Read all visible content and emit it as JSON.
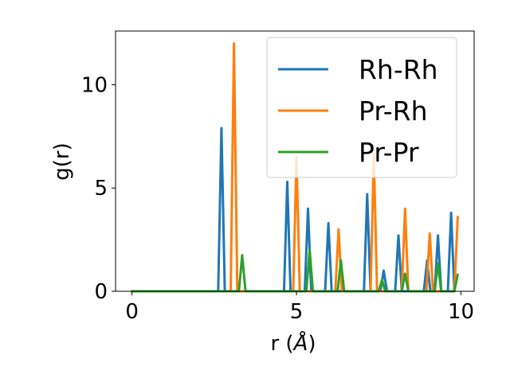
{
  "chart_data": {
    "type": "line",
    "title": "",
    "xlabel_prefix": "r (",
    "xlabel_unit": "Å",
    "xlabel_suffix": ")",
    "ylabel": "g(r)",
    "xlim": [
      -0.5,
      10.4
    ],
    "ylim": [
      0,
      12.6
    ],
    "xticks": [
      0,
      5,
      10
    ],
    "yticks": [
      0,
      5,
      10
    ],
    "legend_position": "top-right",
    "grid": false,
    "series": [
      {
        "name": "Rh-Rh",
        "color": "#1f77b4",
        "x": [
          0,
          2.62,
          2.72,
          2.82,
          4.62,
          4.72,
          4.82,
          5.25,
          5.35,
          5.45,
          5.87,
          5.97,
          6.07,
          7.05,
          7.15,
          7.25,
          7.55,
          7.65,
          7.75,
          8.0,
          8.1,
          8.2,
          8.87,
          8.97,
          9.07,
          9.2,
          9.3,
          9.4,
          9.6,
          9.7,
          9.8
        ],
        "y": [
          0,
          0,
          7.9,
          0,
          0,
          5.3,
          0,
          0,
          4.0,
          0,
          0,
          3.3,
          0,
          0,
          4.7,
          0,
          0,
          1.0,
          0,
          0,
          2.7,
          0,
          0,
          1.5,
          0,
          0,
          2.7,
          0,
          0,
          3.8,
          0
        ]
      },
      {
        "name": "Pr-Rh",
        "color": "#ff7f0e",
        "x": [
          0,
          3.0,
          3.1,
          3.2,
          4.9,
          5.0,
          5.1,
          6.18,
          6.28,
          6.38,
          7.25,
          7.35,
          7.45,
          8.2,
          8.3,
          8.4,
          8.95,
          9.05,
          9.15,
          9.8,
          9.9
        ],
        "y": [
          0,
          0,
          12.0,
          0,
          0,
          6.5,
          0,
          0,
          3.0,
          0,
          0,
          6.6,
          0,
          0,
          4.0,
          0,
          0,
          2.8,
          0,
          0,
          3.6
        ]
      },
      {
        "name": "Pr-Pr",
        "color": "#2ca02c",
        "x": [
          0,
          3.25,
          3.35,
          3.45,
          5.3,
          5.4,
          5.5,
          6.25,
          6.35,
          6.45,
          7.5,
          7.6,
          7.7,
          8.2,
          8.3,
          8.4,
          9.2,
          9.3,
          9.4,
          9.8,
          9.9
        ],
        "y": [
          0,
          0,
          1.75,
          0,
          0,
          2.0,
          0,
          0,
          1.5,
          0,
          0,
          0.55,
          0,
          0,
          0.85,
          0,
          0,
          1.35,
          0,
          0,
          0.8
        ]
      }
    ]
  }
}
